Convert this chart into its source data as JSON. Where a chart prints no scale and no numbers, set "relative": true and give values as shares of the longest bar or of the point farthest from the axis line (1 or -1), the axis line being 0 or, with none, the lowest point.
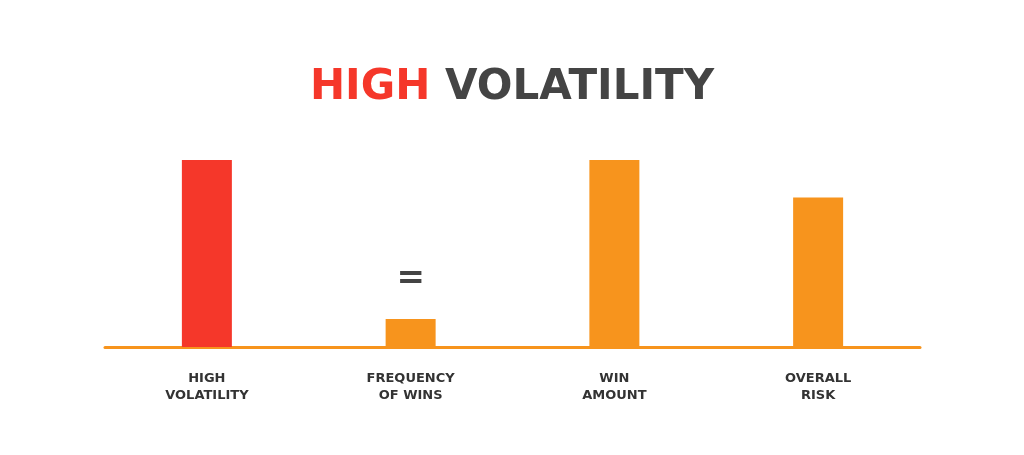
{
  "chart_data": {
    "type": "bar",
    "title": "HIGH VOLATILITY",
    "relative": true,
    "categories": [
      "HIGH\nVOLATILITY",
      "FREQUENCY\nOF WINS",
      "WIN\nAMOUNT",
      "OVERALL\nRISK"
    ],
    "values": [
      1,
      0.15,
      1,
      0.8
    ],
    "colors": [
      "#f5372a",
      "#f7941d",
      "#f7941d",
      "#f7941d"
    ],
    "annotations": [
      "="
    ],
    "grid": false
  }
}
